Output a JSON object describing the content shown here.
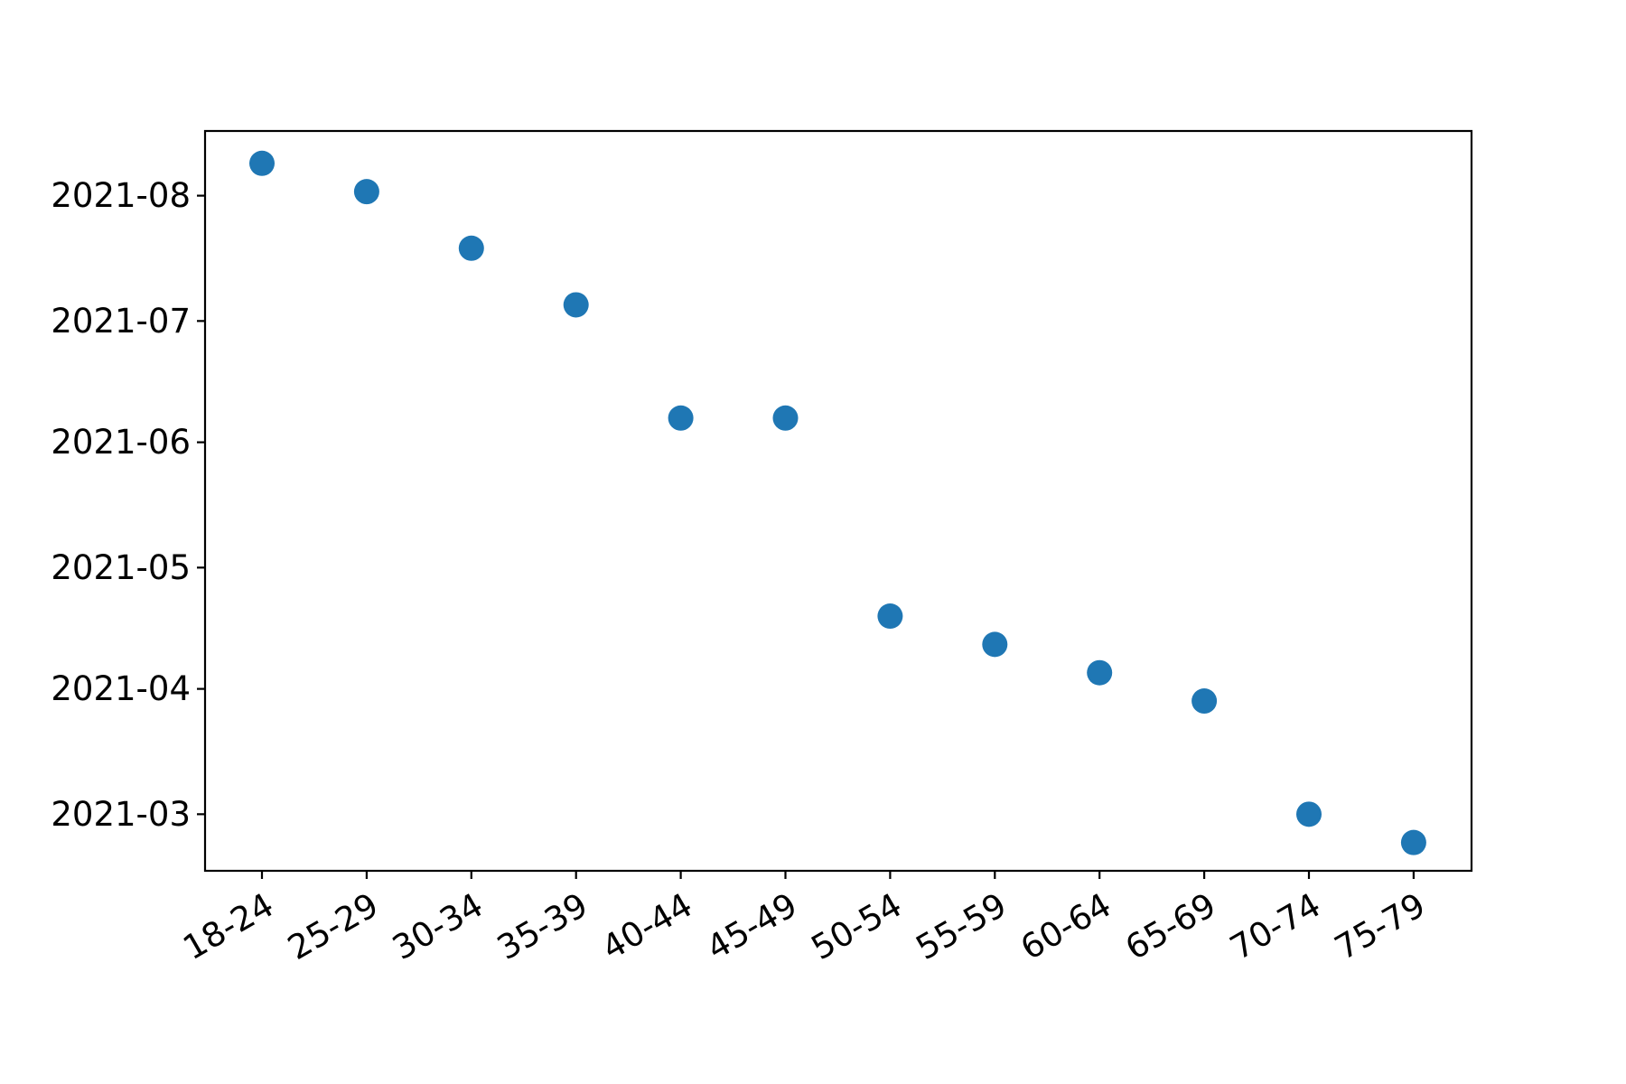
{
  "chart_data": {
    "type": "scatter",
    "title": "",
    "xlabel": "",
    "ylabel": "",
    "categories": [
      "18-24",
      "25-29",
      "30-34",
      "35-39",
      "40-44",
      "45-49",
      "50-54",
      "55-59",
      "60-64",
      "65-69",
      "70-74",
      "75-79"
    ],
    "series": [
      {
        "color": "#1f77b4",
        "values": [
          "2021-08-09",
          "2021-08-02",
          "2021-07-19",
          "2021-07-05",
          "2021-06-07",
          "2021-06-07",
          "2021-04-19",
          "2021-04-12",
          "2021-04-05",
          "2021-03-29",
          "2021-03-01",
          "2021-02-22"
        ]
      }
    ],
    "yticks": [
      "2021-03",
      "2021-04",
      "2021-05",
      "2021-06",
      "2021-07",
      "2021-08"
    ],
    "ylim": [
      "2021-02-15",
      "2021-08-17"
    ],
    "x_tick_rotation": 30,
    "grid": false,
    "legend": "none"
  }
}
